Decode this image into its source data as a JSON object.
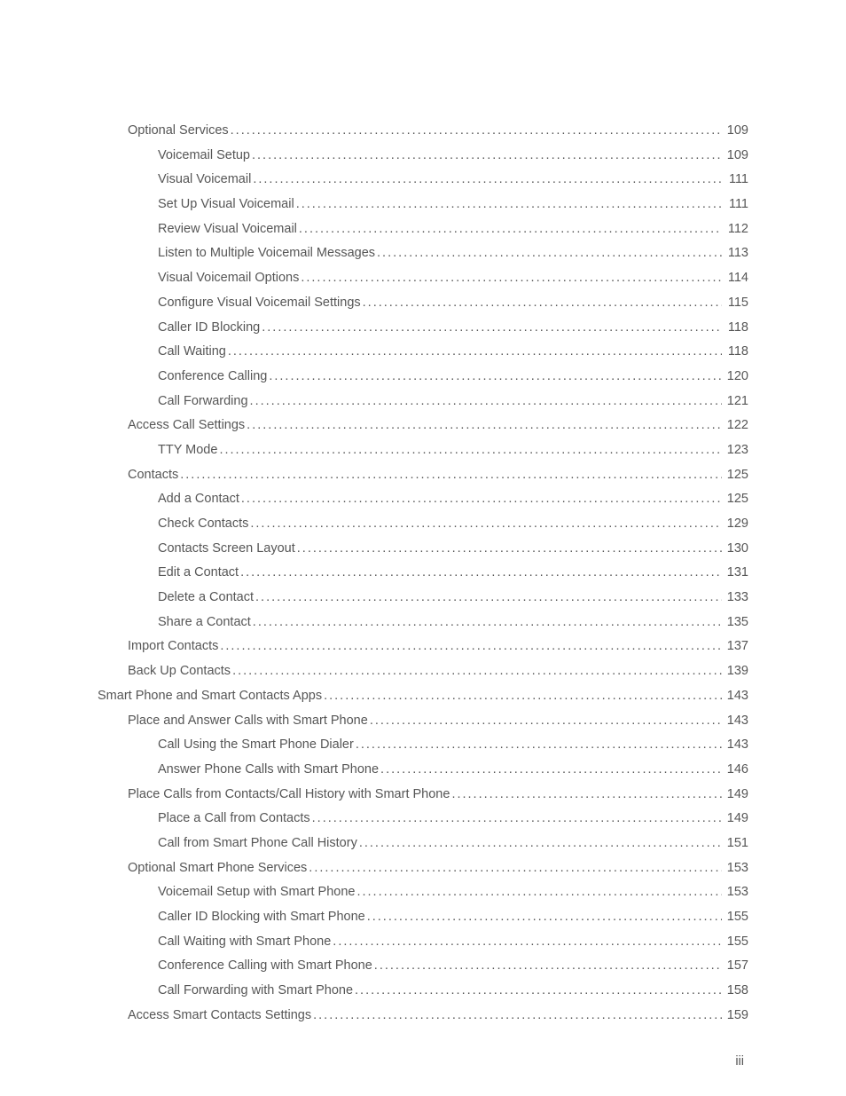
{
  "page_footer": "iii",
  "toc": [
    {
      "level": 1,
      "title": "Optional Services",
      "page": "109"
    },
    {
      "level": 2,
      "title": "Voicemail Setup",
      "page": "109"
    },
    {
      "level": 2,
      "title": "Visual Voicemail",
      "page": "111"
    },
    {
      "level": 2,
      "title": "Set Up Visual Voicemail",
      "page": "111"
    },
    {
      "level": 2,
      "title": "Review Visual Voicemail",
      "page": "112"
    },
    {
      "level": 2,
      "title": "Listen to Multiple Voicemail Messages",
      "page": "113"
    },
    {
      "level": 2,
      "title": "Visual Voicemail Options",
      "page": "114"
    },
    {
      "level": 2,
      "title": "Configure Visual Voicemail Settings",
      "page": "115"
    },
    {
      "level": 2,
      "title": "Caller ID Blocking",
      "page": "118"
    },
    {
      "level": 2,
      "title": "Call Waiting",
      "page": "118"
    },
    {
      "level": 2,
      "title": "Conference Calling",
      "page": "120"
    },
    {
      "level": 2,
      "title": "Call Forwarding",
      "page": "121"
    },
    {
      "level": 1,
      "title": "Access Call Settings",
      "page": "122"
    },
    {
      "level": 2,
      "title": "TTY Mode",
      "page": "123"
    },
    {
      "level": 1,
      "title": "Contacts",
      "page": "125"
    },
    {
      "level": 2,
      "title": "Add a Contact",
      "page": "125"
    },
    {
      "level": 2,
      "title": "Check Contacts",
      "page": "129"
    },
    {
      "level": 2,
      "title": "Contacts Screen Layout",
      "page": "130"
    },
    {
      "level": 2,
      "title": "Edit a Contact",
      "page": "131"
    },
    {
      "level": 2,
      "title": "Delete a Contact",
      "page": "133"
    },
    {
      "level": 2,
      "title": "Share a Contact",
      "page": "135"
    },
    {
      "level": 1,
      "title": "Import Contacts",
      "page": "137"
    },
    {
      "level": 1,
      "title": "Back Up Contacts",
      "page": "139"
    },
    {
      "level": 0,
      "title": "Smart Phone and Smart Contacts Apps",
      "page": "143"
    },
    {
      "level": 1,
      "title": "Place and Answer Calls with Smart Phone",
      "page": "143"
    },
    {
      "level": 2,
      "title": "Call Using the Smart Phone Dialer",
      "page": "143"
    },
    {
      "level": 2,
      "title": "Answer Phone Calls with Smart Phone",
      "page": "146"
    },
    {
      "level": 1,
      "title": "Place Calls from Contacts/Call History with Smart Phone",
      "page": "149"
    },
    {
      "level": 2,
      "title": "Place a Call from Contacts",
      "page": "149"
    },
    {
      "level": 2,
      "title": "Call from Smart Phone Call History",
      "page": "151"
    },
    {
      "level": 1,
      "title": "Optional Smart Phone Services",
      "page": "153"
    },
    {
      "level": 2,
      "title": "Voicemail Setup with Smart Phone",
      "page": "153"
    },
    {
      "level": 2,
      "title": "Caller ID Blocking with Smart Phone",
      "page": "155"
    },
    {
      "level": 2,
      "title": "Call Waiting with Smart Phone",
      "page": "155"
    },
    {
      "level": 2,
      "title": "Conference Calling with Smart Phone",
      "page": "157"
    },
    {
      "level": 2,
      "title": "Call Forwarding with Smart Phone",
      "page": "158"
    },
    {
      "level": 1,
      "title": "Access Smart Contacts Settings",
      "page": "159"
    }
  ]
}
